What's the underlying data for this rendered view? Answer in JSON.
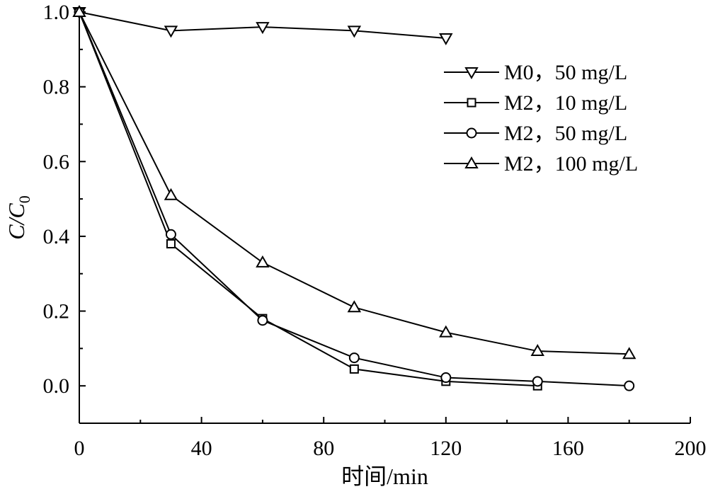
{
  "chart_data": {
    "type": "line",
    "xlabel": "时间/min",
    "ylabel": "C/C0",
    "ylabel_parts": {
      "main": "C/C",
      "sub": "0"
    },
    "xlim": [
      0,
      200
    ],
    "ylim": [
      -0.1,
      1.0
    ],
    "xticks": [
      0,
      40,
      80,
      120,
      160,
      200
    ],
    "xticks_minor": [
      20,
      60,
      100,
      140,
      180
    ],
    "yticks": [
      0.0,
      0.2,
      0.4,
      0.6,
      0.8,
      1.0
    ],
    "ytick_labels": [
      "0.0",
      "0.2",
      "0.4",
      "0.6",
      "0.8",
      "1.0"
    ],
    "legend_position": "top-right",
    "grid": false,
    "series": [
      {
        "name": "M0，50 mg/L",
        "marker": "triangle-down",
        "x": [
          0,
          30,
          60,
          90,
          120
        ],
        "y": [
          1.0,
          0.95,
          0.96,
          0.95,
          0.93
        ]
      },
      {
        "name": "M2，10 mg/L",
        "marker": "square",
        "x": [
          0,
          30,
          60,
          90,
          120,
          150
        ],
        "y": [
          1.0,
          0.38,
          0.18,
          0.045,
          0.012,
          0.0
        ]
      },
      {
        "name": "M2，50 mg/L",
        "marker": "circle",
        "x": [
          0,
          30,
          60,
          90,
          120,
          150,
          180
        ],
        "y": [
          1.0,
          0.405,
          0.175,
          0.075,
          0.022,
          0.012,
          0.0
        ]
      },
      {
        "name": "M2，100 mg/L",
        "marker": "triangle-up",
        "x": [
          0,
          30,
          60,
          90,
          120,
          150,
          180
        ],
        "y": [
          1.0,
          0.51,
          0.33,
          0.21,
          0.143,
          0.093,
          0.085
        ]
      }
    ]
  }
}
